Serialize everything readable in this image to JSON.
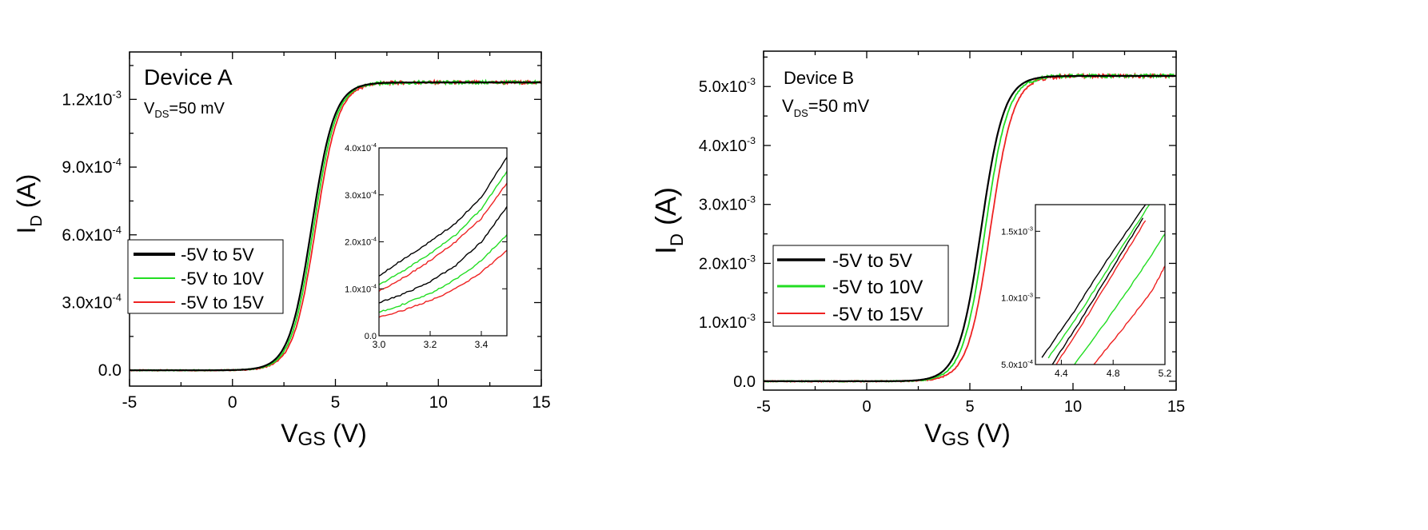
{
  "colors": {
    "black": "#000000",
    "green": "#22dd22",
    "red": "#ee2222"
  },
  "chart_data": [
    {
      "type": "line",
      "title": "Device A",
      "annotation_main": "V",
      "annotation_sub": "DS",
      "annotation_rest": "=50 mV",
      "xlabel_main": "V",
      "xlabel_sub": "GS",
      "xlabel_rest": " (V)",
      "ylabel_main": "I",
      "ylabel_sub": "D",
      "ylabel_rest": " (A)",
      "xlim": [
        -5,
        15
      ],
      "ylim": [
        -7e-05,
        0.00141
      ],
      "xticks": [
        "-5",
        "0",
        "5",
        "10",
        "15"
      ],
      "yticks": [
        {
          "value": 0.0,
          "mantissa": "0.0",
          "exp": ""
        },
        {
          "value": 0.0003,
          "mantissa": "3.0x10",
          "exp": "-4"
        },
        {
          "value": 0.0006,
          "mantissa": "6.0x10",
          "exp": "-4"
        },
        {
          "value": 0.0009,
          "mantissa": "9.0x10",
          "exp": "-4"
        },
        {
          "value": 0.0012,
          "mantissa": "1.2x10",
          "exp": "-3"
        }
      ],
      "legend": [
        "-5V to 5V",
        "-5V to 10V",
        "-5V to 15V"
      ],
      "series": [
        {
          "name": "-5V to 5V",
          "color": "black",
          "vth": 3.85,
          "sat": 0.001275
        },
        {
          "name": "-5V to 10V",
          "color": "green",
          "vth": 3.95,
          "sat": 0.001275
        },
        {
          "name": "-5V to 15V",
          "color": "red",
          "vth": 4.05,
          "sat": 0.001275
        }
      ],
      "inset": {
        "xlim": [
          3.0,
          3.5
        ],
        "ylim": [
          0.0,
          0.0004
        ],
        "xticks": [
          "3.0",
          "3.2",
          "3.4"
        ],
        "yticks": [
          {
            "value": 0.0,
            "mantissa": "0.0",
            "exp": ""
          },
          {
            "value": 0.0001,
            "mantissa": "1.0x10",
            "exp": "-4"
          },
          {
            "value": 0.0002,
            "mantissa": "2.0x10",
            "exp": "-4"
          },
          {
            "value": 0.0003,
            "mantissa": "3.0x10",
            "exp": "-4"
          },
          {
            "value": 0.0004,
            "mantissa": "4.0x10",
            "exp": "-4"
          }
        ],
        "series": [
          {
            "color": "black",
            "x": [
              3.0,
              3.1,
              3.2,
              3.3,
              3.4,
              3.5
            ],
            "y": [
              0.000128,
              0.000165,
              0.0002,
              0.00024,
              0.000295,
              0.00038
            ]
          },
          {
            "color": "green",
            "x": [
              3.0,
              3.1,
              3.2,
              3.3,
              3.4,
              3.5
            ],
            "y": [
              0.000108,
              0.00014,
              0.000175,
              0.000215,
              0.00027,
              0.00035
            ]
          },
          {
            "color": "red",
            "x": [
              3.0,
              3.1,
              3.2,
              3.3,
              3.4,
              3.5
            ],
            "y": [
              9.5e-05,
              0.000125,
              0.00016,
              0.0002,
              0.00025,
              0.000325
            ]
          },
          {
            "color": "black",
            "x": [
              3.0,
              3.1,
              3.2,
              3.3,
              3.4,
              3.5
            ],
            "y": [
              7e-05,
              9e-05,
              0.000115,
              0.00015,
              0.0002,
              0.000275
            ]
          },
          {
            "color": "green",
            "x": [
              3.0,
              3.1,
              3.2,
              3.3,
              3.4,
              3.5
            ],
            "y": [
              5e-05,
              6.8e-05,
              9e-05,
              0.00012,
              0.00016,
              0.000215
            ]
          },
          {
            "color": "red",
            "x": [
              3.0,
              3.1,
              3.2,
              3.3,
              3.4,
              3.5
            ],
            "y": [
              4e-05,
              5.5e-05,
              7.5e-05,
              0.0001,
              0.000135,
              0.000182
            ]
          }
        ]
      }
    },
    {
      "type": "line",
      "title": "Device B",
      "annotation_main": "V",
      "annotation_sub": "DS",
      "annotation_rest": "=50 mV",
      "xlabel_main": "V",
      "xlabel_sub": "GS",
      "xlabel_rest": " (V)",
      "ylabel_main": "I",
      "ylabel_sub": "D",
      "ylabel_rest": " (A)",
      "xlim": [
        -5,
        15
      ],
      "ylim": [
        -0.00015,
        0.0056
      ],
      "xticks": [
        "-5",
        "0",
        "5",
        "10",
        "15"
      ],
      "yticks": [
        {
          "value": 0.0,
          "mantissa": "0.0",
          "exp": ""
        },
        {
          "value": 0.001,
          "mantissa": "1.0x10",
          "exp": "-3"
        },
        {
          "value": 0.002,
          "mantissa": "2.0x10",
          "exp": "-3"
        },
        {
          "value": 0.003,
          "mantissa": "3.0x10",
          "exp": "-3"
        },
        {
          "value": 0.004,
          "mantissa": "4.0x10",
          "exp": "-3"
        },
        {
          "value": 0.005,
          "mantissa": "5.0x10",
          "exp": "-3"
        }
      ],
      "legend": [
        "-5V to 5V",
        "-5V to 10V",
        "-5V to 15V"
      ],
      "series": [
        {
          "name": "-5V to 5V",
          "color": "black",
          "vth": 5.55,
          "sat": 0.00518
        },
        {
          "name": "-5V to 10V",
          "color": "green",
          "vth": 5.75,
          "sat": 0.00518
        },
        {
          "name": "-5V to 15V",
          "color": "red",
          "vth": 6.0,
          "sat": 0.00518
        }
      ],
      "inset": {
        "xlim": [
          4.2,
          5.2
        ],
        "ylim": [
          0.0005,
          0.0017
        ],
        "xticks": [
          "4.4",
          "4.8",
          "5.2"
        ],
        "xtick_values": [
          4.4,
          4.8,
          5.2
        ],
        "yticks": [
          {
            "value": 0.0005,
            "mantissa": "5.0x10",
            "exp": "-4"
          },
          {
            "value": 0.001,
            "mantissa": "1.0x10",
            "exp": "-3"
          },
          {
            "value": 0.0015,
            "mantissa": "1.5x10",
            "exp": "-3"
          }
        ],
        "series": [
          {
            "color": "black",
            "x": [
              4.25,
              4.5,
              4.75,
              5.05
            ],
            "y": [
              0.00055,
              0.0009,
              0.00128,
              0.0017
            ]
          },
          {
            "color": "green",
            "x": [
              4.3,
              4.55,
              4.8,
              5.08
            ],
            "y": [
              0.00055,
              0.0009,
              0.00128,
              0.0017
            ]
          },
          {
            "color": "black",
            "x": [
              4.33,
              4.58,
              4.83,
              5.03
            ],
            "y": [
              0.0005,
              0.00088,
              0.00128,
              0.0016
            ]
          },
          {
            "color": "red",
            "x": [
              4.36,
              4.61,
              4.86,
              5.05
            ],
            "y": [
              0.0005,
              0.00088,
              0.00128,
              0.00158
            ]
          },
          {
            "color": "green",
            "x": [
              4.5,
              4.75,
              5.0,
              5.2
            ],
            "y": [
              0.0005,
              0.00083,
              0.00118,
              0.00148
            ]
          },
          {
            "color": "red",
            "x": [
              4.65,
              4.9,
              5.1,
              5.2
            ],
            "y": [
              0.0005,
              0.0008,
              0.00105,
              0.00124
            ]
          }
        ]
      }
    }
  ]
}
